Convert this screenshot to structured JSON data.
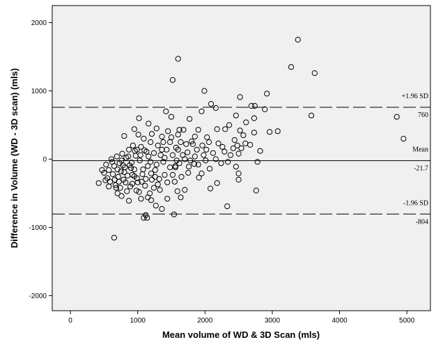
{
  "chart_data": {
    "type": "scatter",
    "title": "",
    "xlabel": "Mean volume of WD & 3D Scan (mls)",
    "ylabel": "Difference in Volume (WD - 3D scan) (mls)",
    "xlim": [
      -270,
      5350
    ],
    "ylim": [
      -2220,
      2250
    ],
    "xticks": [
      "0",
      "1000",
      "2000",
      "3000",
      "4000",
      "5000"
    ],
    "yticks": [
      "-2000",
      "-1000",
      "0",
      "1000",
      "2000"
    ],
    "grid": false,
    "plot_background": "#f0f0f0",
    "marker": "open-circle",
    "reference_lines": [
      {
        "value": 760,
        "style": "dashed",
        "label_above": "+1.96 SD",
        "label_below": "760"
      },
      {
        "value": -21.7,
        "style": "solid",
        "label_above": "Mean",
        "label_below": "-21.7"
      },
      {
        "value": -804,
        "style": "dashed",
        "label_above": "-1.96 SD",
        "label_below": "-804"
      }
    ],
    "points": [
      [
        3380,
        1750
      ],
      [
        1600,
        1470
      ],
      [
        3280,
        1350
      ],
      [
        3630,
        1260
      ],
      [
        1520,
        1160
      ],
      [
        1990,
        1000
      ],
      [
        2920,
        960
      ],
      [
        2520,
        910
      ],
      [
        2090,
        810
      ],
      [
        2690,
        780
      ],
      [
        2740,
        780
      ],
      [
        2160,
        750
      ],
      [
        1420,
        700
      ],
      [
        2890,
        730
      ],
      [
        1950,
        700
      ],
      [
        1770,
        590
      ],
      [
        1500,
        620
      ],
      [
        3580,
        640
      ],
      [
        4850,
        620
      ],
      [
        2460,
        640
      ],
      [
        2610,
        540
      ],
      [
        2730,
        600
      ],
      [
        2360,
        500
      ],
      [
        3080,
        410
      ],
      [
        2960,
        400
      ],
      [
        2730,
        390
      ],
      [
        4950,
        300
      ],
      [
        2520,
        420
      ],
      [
        2570,
        350
      ],
      [
        2180,
        440
      ],
      [
        2300,
        440
      ],
      [
        2030,
        320
      ],
      [
        1900,
        430
      ],
      [
        1850,
        330
      ],
      [
        1680,
        430
      ],
      [
        1600,
        360
      ],
      [
        1450,
        410
      ],
      [
        1360,
        330
      ],
      [
        1280,
        450
      ],
      [
        1160,
        520
      ],
      [
        1020,
        600
      ],
      [
        800,
        340
      ],
      [
        950,
        440
      ],
      [
        2480,
        200
      ],
      [
        2540,
        160
      ],
      [
        2600,
        230
      ],
      [
        2670,
        210
      ],
      [
        2820,
        120
      ],
      [
        2500,
        80
      ],
      [
        2380,
        60
      ],
      [
        2240,
        -60
      ],
      [
        2160,
        0
      ],
      [
        2290,
        110
      ],
      [
        2460,
        -110
      ],
      [
        2500,
        -210
      ],
      [
        2500,
        -300
      ],
      [
        2070,
        -140
      ],
      [
        2180,
        -350
      ],
      [
        2080,
        -430
      ],
      [
        1910,
        -270
      ],
      [
        1760,
        -110
      ],
      [
        1700,
        -450
      ],
      [
        1590,
        -470
      ],
      [
        1540,
        -810
      ],
      [
        1550,
        -330
      ],
      [
        1640,
        -560
      ],
      [
        1440,
        -580
      ],
      [
        1360,
        -730
      ],
      [
        1270,
        -680
      ],
      [
        1200,
        -600
      ],
      [
        1120,
        -820
      ],
      [
        1090,
        -860
      ],
      [
        1140,
        -860
      ],
      [
        1180,
        -500
      ],
      [
        1050,
        -580
      ],
      [
        980,
        -460
      ],
      [
        920,
        -360
      ],
      [
        870,
        -610
      ],
      [
        760,
        -540
      ],
      [
        700,
        -500
      ],
      [
        650,
        -1150
      ],
      [
        570,
        -400
      ],
      [
        520,
        -310
      ],
      [
        470,
        -160
      ],
      [
        420,
        -350
      ],
      [
        2760,
        -460
      ],
      [
        2780,
        -40
      ],
      [
        2330,
        -690
      ],
      [
        1670,
        60
      ],
      [
        1780,
        -20
      ],
      [
        1840,
        -70
      ],
      [
        1980,
        60
      ],
      [
        2020,
        140
      ],
      [
        1950,
        -210
      ],
      [
        1880,
        140
      ],
      [
        1820,
        220
      ],
      [
        1740,
        100
      ],
      [
        1720,
        220
      ],
      [
        1640,
        250
      ],
      [
        1620,
        -60
      ],
      [
        1570,
        170
      ],
      [
        1520,
        60
      ],
      [
        1480,
        -120
      ],
      [
        1430,
        140
      ],
      [
        1400,
        -230
      ],
      [
        1380,
        -40
      ],
      [
        1340,
        60
      ],
      [
        1300,
        200
      ],
      [
        1260,
        -160
      ],
      [
        1240,
        90
      ],
      [
        1210,
        -300
      ],
      [
        1190,
        250
      ],
      [
        1150,
        -100
      ],
      [
        1130,
        110
      ],
      [
        1110,
        -390
      ],
      [
        1090,
        300
      ],
      [
        1070,
        -220
      ],
      [
        1050,
        180
      ],
      [
        1030,
        -20
      ],
      [
        1010,
        360
      ],
      [
        990,
        -280
      ],
      [
        970,
        50
      ],
      [
        950,
        -150
      ],
      [
        930,
        200
      ],
      [
        910,
        -50
      ],
      [
        890,
        -400
      ],
      [
        870,
        140
      ],
      [
        850,
        -240
      ],
      [
        830,
        20
      ],
      [
        810,
        -120
      ],
      [
        790,
        -300
      ],
      [
        770,
        80
      ],
      [
        750,
        -180
      ],
      [
        730,
        -60
      ],
      [
        710,
        -260
      ],
      [
        690,
        40
      ],
      [
        670,
        -380
      ],
      [
        650,
        -100
      ],
      [
        630,
        -220
      ],
      [
        610,
        0
      ],
      [
        590,
        -330
      ],
      [
        570,
        -160
      ],
      [
        550,
        -280
      ],
      [
        530,
        -80
      ],
      [
        500,
        -200
      ],
      [
        680,
        -420
      ],
      [
        720,
        -330
      ],
      [
        760,
        -20
      ],
      [
        800,
        -190
      ],
      [
        840,
        -470
      ],
      [
        880,
        -90
      ],
      [
        920,
        -230
      ],
      [
        960,
        120
      ],
      [
        1000,
        -340
      ],
      [
        1040,
        60
      ],
      [
        1080,
        -150
      ],
      [
        1120,
        -290
      ],
      [
        1160,
        40
      ],
      [
        1200,
        -210
      ],
      [
        1240,
        -420
      ],
      [
        1280,
        -80
      ],
      [
        1320,
        -290
      ],
      [
        1360,
        140
      ],
      [
        1400,
        20
      ],
      [
        1440,
        -340
      ],
      [
        1480,
        250
      ],
      [
        1520,
        -230
      ],
      [
        1560,
        -100
      ],
      [
        1600,
        140
      ],
      [
        1650,
        -260
      ],
      [
        1700,
        0
      ],
      [
        1750,
        -200
      ],
      [
        1800,
        260
      ],
      [
        1850,
        40
      ],
      [
        1900,
        -80
      ],
      [
        1960,
        200
      ],
      [
        2010,
        -20
      ],
      [
        2060,
        250
      ],
      [
        2120,
        90
      ],
      [
        2200,
        230
      ],
      [
        2260,
        180
      ],
      [
        2340,
        -40
      ],
      [
        2420,
        160
      ],
      [
        2440,
        280
      ],
      [
        1380,
        250
      ],
      [
        1330,
        -450
      ],
      [
        1260,
        -260
      ],
      [
        1190,
        -40
      ],
      [
        1150,
        -560
      ],
      [
        1100,
        130
      ],
      [
        1060,
        -330
      ],
      [
        1020,
        -480
      ],
      [
        990,
        140
      ],
      [
        950,
        -250
      ],
      [
        900,
        -130
      ],
      [
        860,
        40
      ],
      [
        820,
        -340
      ],
      [
        780,
        -90
      ],
      [
        740,
        -420
      ],
      [
        700,
        -150
      ],
      [
        660,
        -300
      ],
      [
        620,
        -40
      ],
      [
        1500,
        320
      ],
      [
        1560,
        -120
      ],
      [
        1300,
        -370
      ],
      [
        1210,
        370
      ],
      [
        1620,
        430
      ],
      [
        1580,
        -20
      ]
    ]
  }
}
